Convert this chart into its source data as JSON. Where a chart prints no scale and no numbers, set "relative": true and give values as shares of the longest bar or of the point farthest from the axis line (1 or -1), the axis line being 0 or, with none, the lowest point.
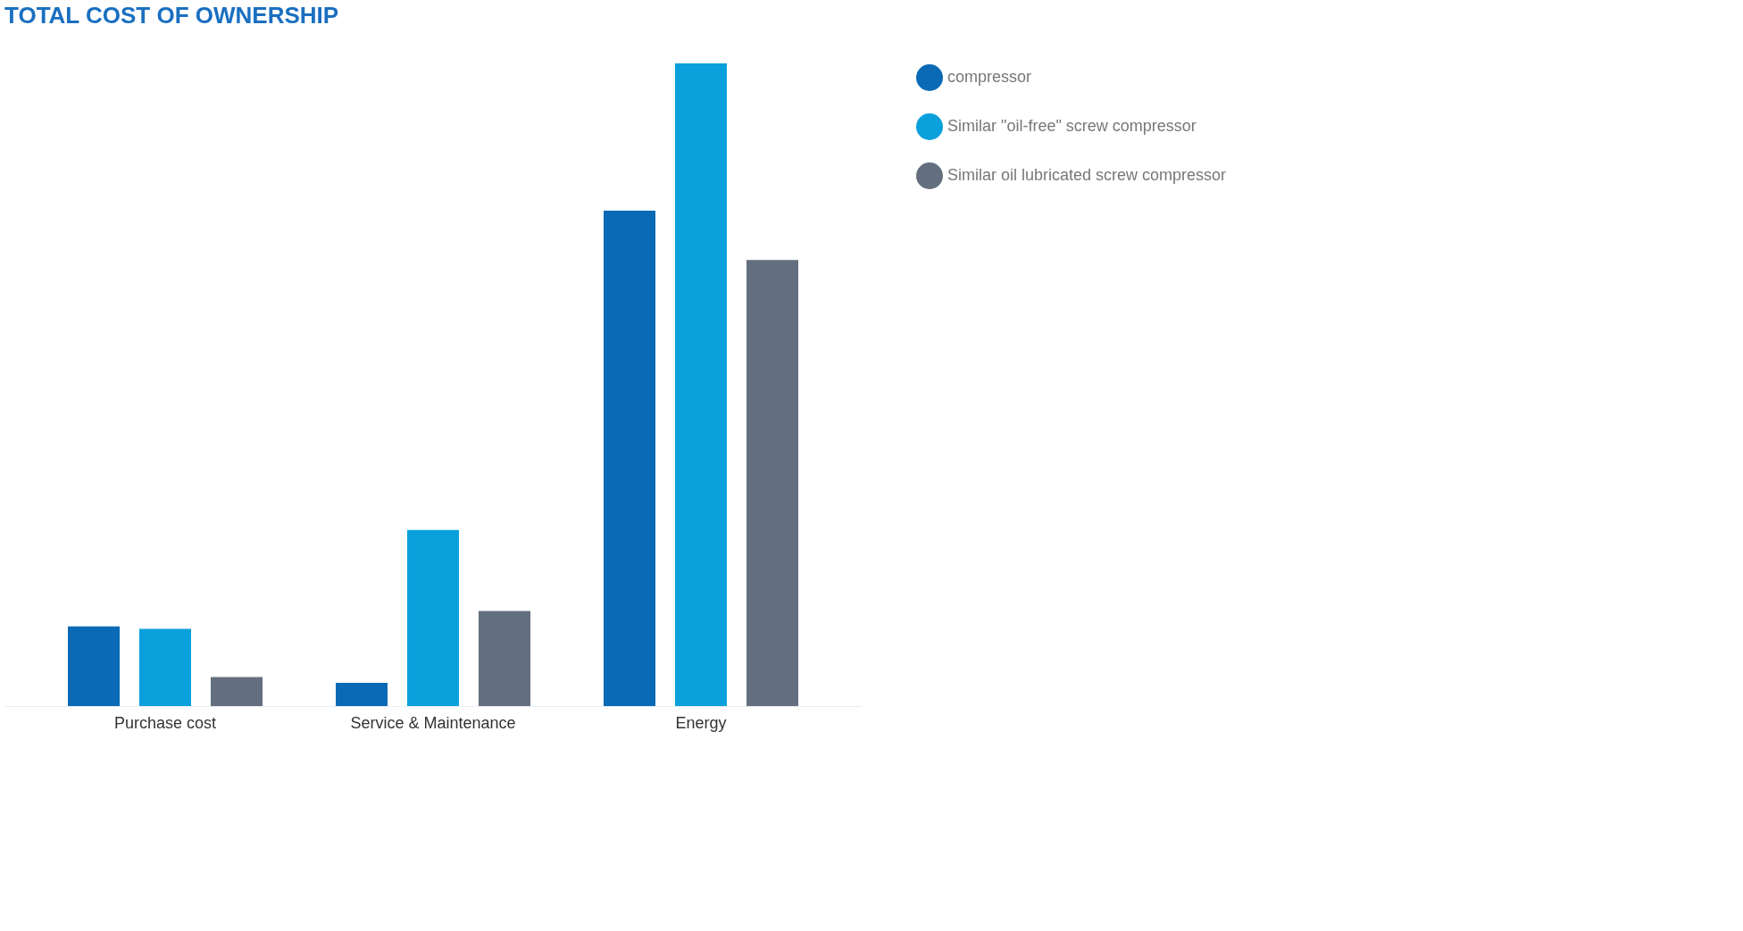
{
  "chart_data": {
    "type": "bar",
    "title": "TOTAL COST OF OWNERSHIP",
    "relative": true,
    "legend": "right",
    "categories": [
      "Purchase cost",
      "Service & Maintenance",
      "Energy"
    ],
    "series": [
      {
        "name": "compressor",
        "color": "#0a6ab5",
        "values": [
          0.124,
          0.036,
          0.771
        ]
      },
      {
        "name": "Similar \"oil-free\" screw compressor",
        "color": "#0aa0dc",
        "values": [
          0.12,
          0.274,
          1
        ]
      },
      {
        "name": "Similar oil lubricated screw compressor",
        "color": "#636e7e",
        "values": [
          0.045,
          0.148,
          0.694
        ]
      }
    ]
  }
}
